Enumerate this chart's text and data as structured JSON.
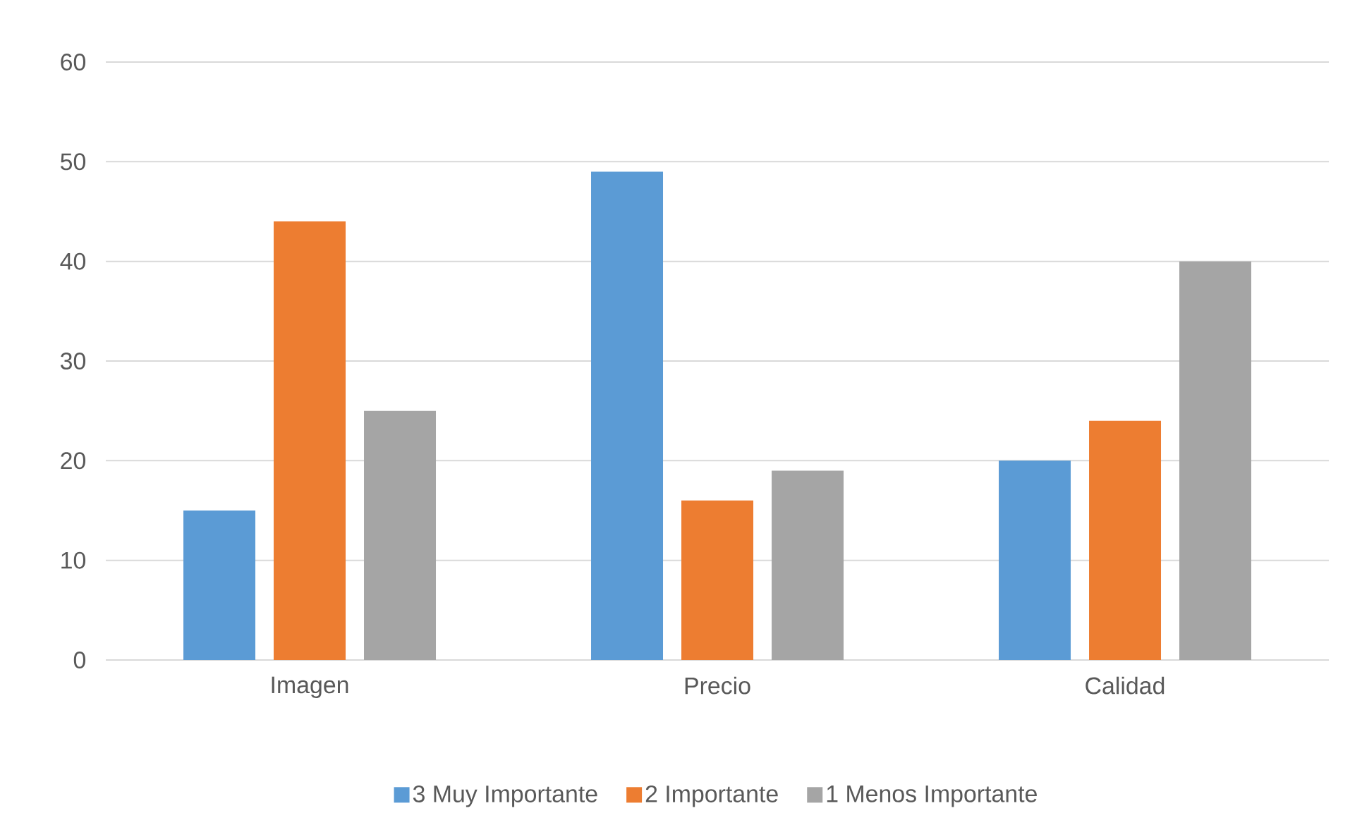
{
  "chart_data": {
    "type": "bar",
    "categories": [
      "Imagen",
      "Precio",
      "Calidad"
    ],
    "series": [
      {
        "name": "3 Muy Importante",
        "color": "#5b9bd5",
        "values": [
          15,
          49,
          20
        ]
      },
      {
        "name": "2 Importante",
        "color": "#ed7d31",
        "values": [
          44,
          16,
          24
        ]
      },
      {
        "name": "1 Menos Importante",
        "color": "#a5a5a5",
        "values": [
          25,
          19,
          40
        ]
      }
    ],
    "ylim": [
      0,
      60
    ],
    "yticks": [
      0,
      10,
      20,
      30,
      40,
      50,
      60
    ],
    "grid": "y",
    "legend": "bottom"
  }
}
